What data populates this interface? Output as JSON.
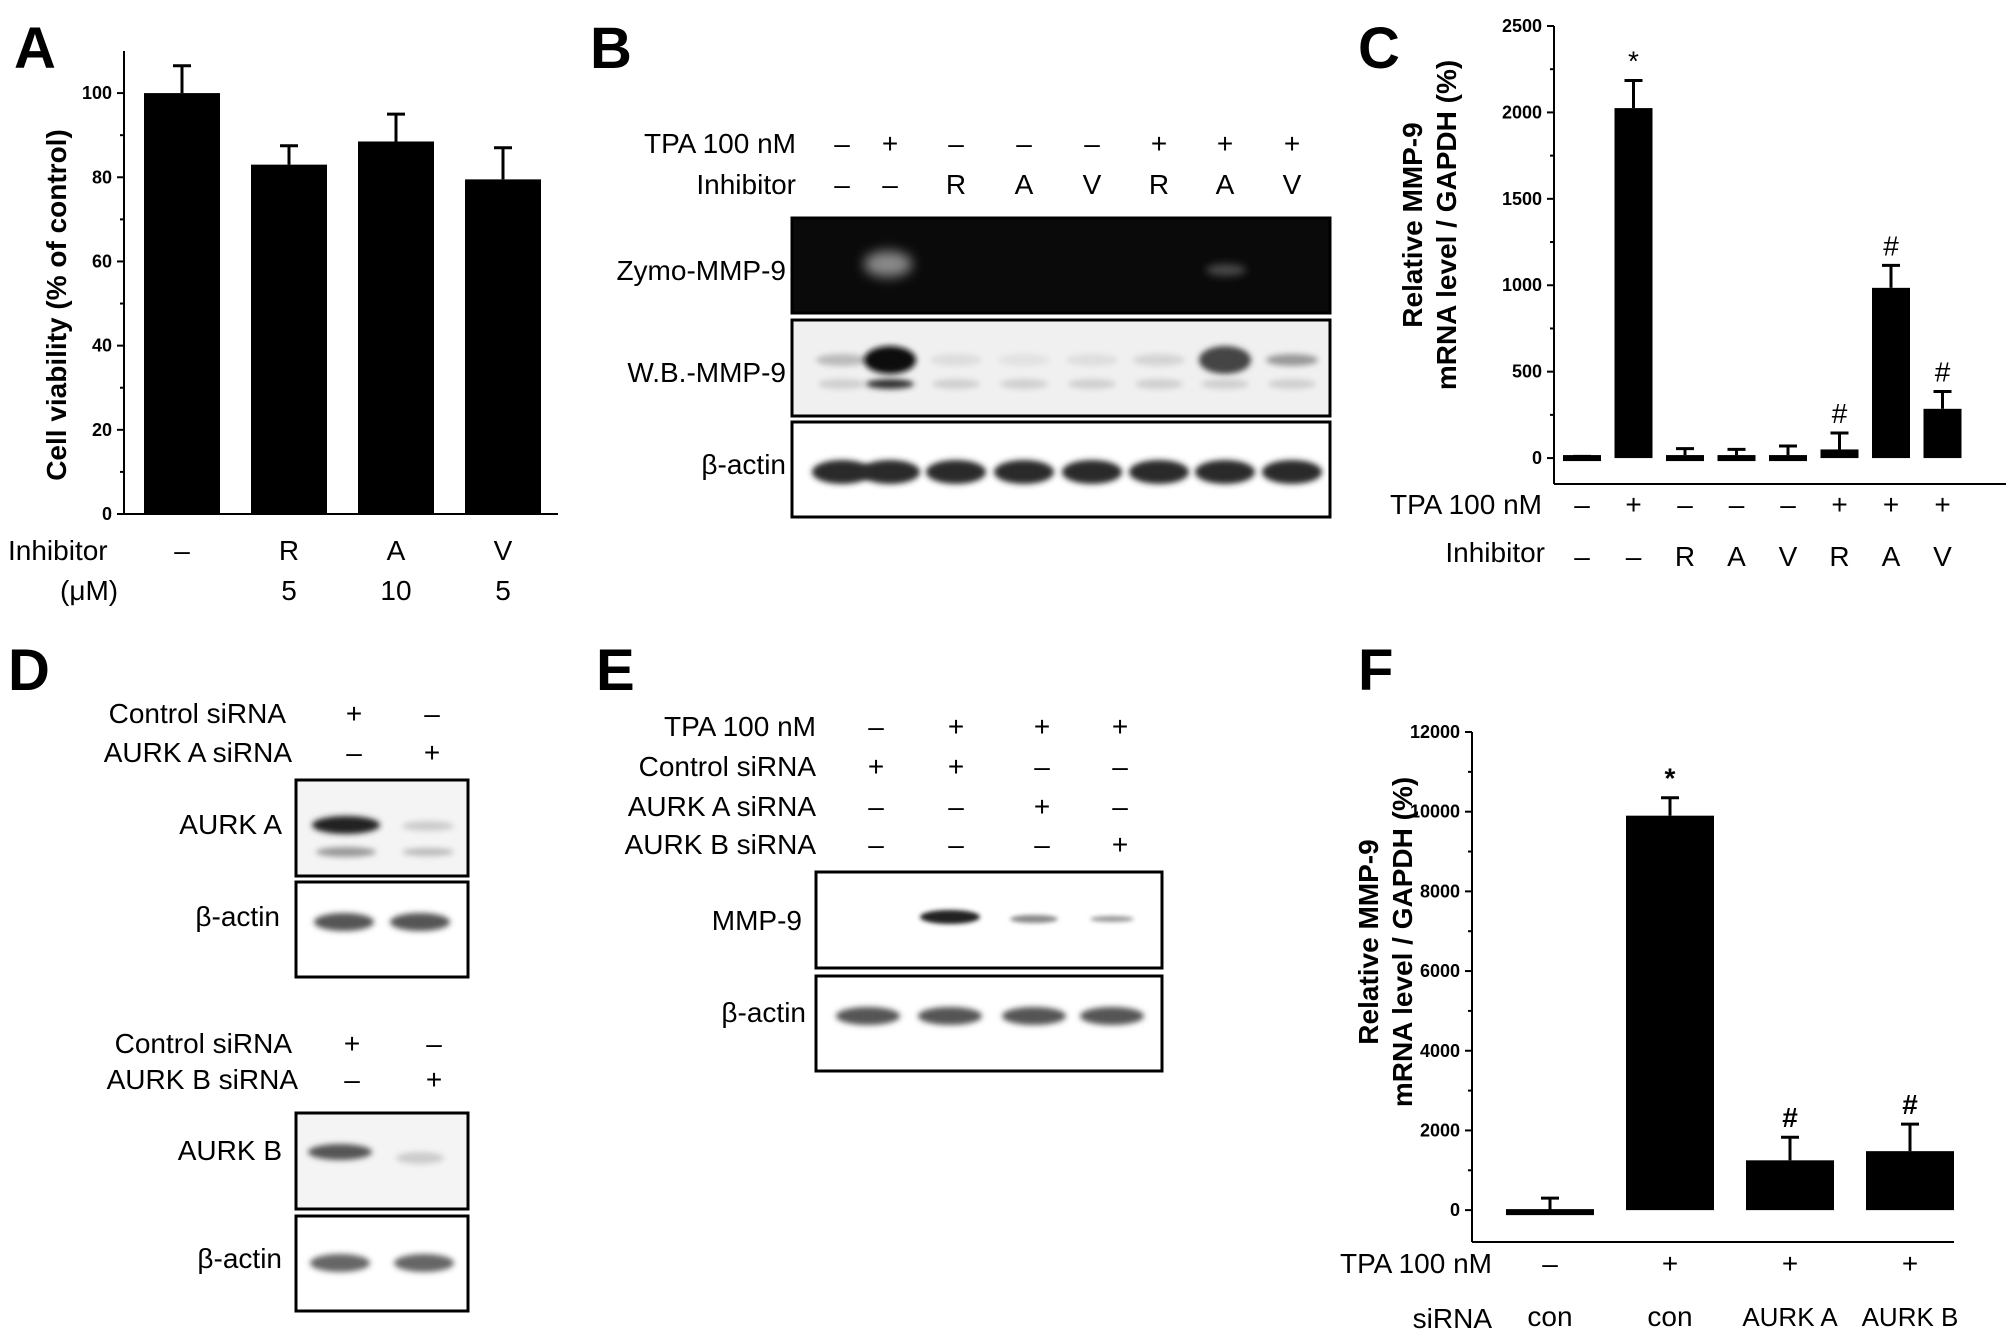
{
  "panels": {
    "A": {
      "label": "A"
    },
    "B": {
      "label": "B",
      "tpa_label": "TPA 100 nM",
      "inhibitor_label": "Inhibitor",
      "tpa": [
        "–",
        "+",
        "–",
        "–",
        "–",
        "+",
        "+",
        "+"
      ],
      "inhibitor": [
        "–",
        "–",
        "R",
        "A",
        "V",
        "R",
        "A",
        "V"
      ],
      "blots": [
        "Zymo-MMP-9",
        "W.B.-MMP-9",
        "β-actin"
      ]
    },
    "C": {
      "label": "C"
    },
    "D": {
      "label": "D",
      "top": {
        "rows": [
          "Control siRNA",
          "AURK A siRNA"
        ],
        "signs": [
          [
            "+",
            "–"
          ],
          [
            "–",
            "+"
          ]
        ],
        "blots": [
          "AURK A",
          "β-actin"
        ]
      },
      "bottom": {
        "rows": [
          "Control siRNA",
          "AURK B siRNA"
        ],
        "signs": [
          [
            "+",
            "–"
          ],
          [
            "–",
            "+"
          ]
        ],
        "blots": [
          "AURK B",
          "β-actin"
        ]
      }
    },
    "E": {
      "label": "E",
      "rows": [
        "TPA 100 nM",
        "Control siRNA",
        "AURK A siRNA",
        "AURK B siRNA"
      ],
      "signs": [
        [
          "–",
          "+",
          "+",
          "+"
        ],
        [
          "+",
          "+",
          "–",
          "–"
        ],
        [
          "–",
          "–",
          "+",
          "–"
        ],
        [
          "–",
          "–",
          "–",
          "+"
        ]
      ],
      "blots": [
        "MMP-9",
        "β-actin"
      ]
    },
    "F": {
      "label": "F"
    }
  },
  "chart_data": [
    {
      "id": "A",
      "type": "bar",
      "categories": [
        "–",
        "R",
        "A",
        "V"
      ],
      "doses": [
        "",
        "5",
        "10",
        "5"
      ],
      "values": [
        100,
        83,
        88.5,
        79.5
      ],
      "errors": [
        6.5,
        4.5,
        6.5,
        7.5
      ],
      "ylabel": "Cell viability (% of control)",
      "ylim": [
        0,
        110
      ],
      "yticks": [
        0,
        20,
        40,
        60,
        80,
        100
      ],
      "row_labels": [
        "Inhibitor",
        "(μM)"
      ],
      "bar_color": "#000000"
    },
    {
      "id": "C",
      "type": "bar",
      "values": [
        0,
        2025,
        0,
        0,
        0,
        50,
        985,
        285
      ],
      "errors": [
        10,
        160,
        55,
        50,
        70,
        95,
        130,
        100
      ],
      "markers": [
        "",
        "*",
        "",
        "",
        "",
        "#",
        "#",
        "#"
      ],
      "tpa": [
        "–",
        "+",
        "–",
        "–",
        "–",
        "+",
        "+",
        "+"
      ],
      "inhibitor": [
        "–",
        "–",
        "R",
        "A",
        "V",
        "R",
        "A",
        "V"
      ],
      "row_labels": [
        "TPA 100 nM",
        "Inhibitor"
      ],
      "ylabel": [
        "Relative MMP-9",
        "mRNA level / GAPDH  (%)"
      ],
      "ylim": [
        -150,
        2500
      ],
      "yticks": [
        0,
        500,
        1000,
        1500,
        2000,
        2500
      ],
      "bar_color": "#000000"
    },
    {
      "id": "F",
      "type": "bar",
      "values": [
        -50,
        9900,
        1250,
        1480
      ],
      "errors": [
        350,
        450,
        580,
        680
      ],
      "markers": [
        "",
        "*",
        "#",
        "#"
      ],
      "tpa": [
        "–",
        "+",
        "+",
        "+"
      ],
      "sirna": [
        "con",
        "con",
        "AURK A",
        "AURK B"
      ],
      "row_labels": [
        "TPA 100 nM",
        "siRNA"
      ],
      "ylabel": [
        "Relative MMP-9",
        "mRNA level / GAPDH  (%)"
      ],
      "ylim": [
        -800,
        12000
      ],
      "yticks": [
        0,
        2000,
        4000,
        6000,
        8000,
        10000,
        12000
      ],
      "bar_color": "#000000"
    }
  ]
}
